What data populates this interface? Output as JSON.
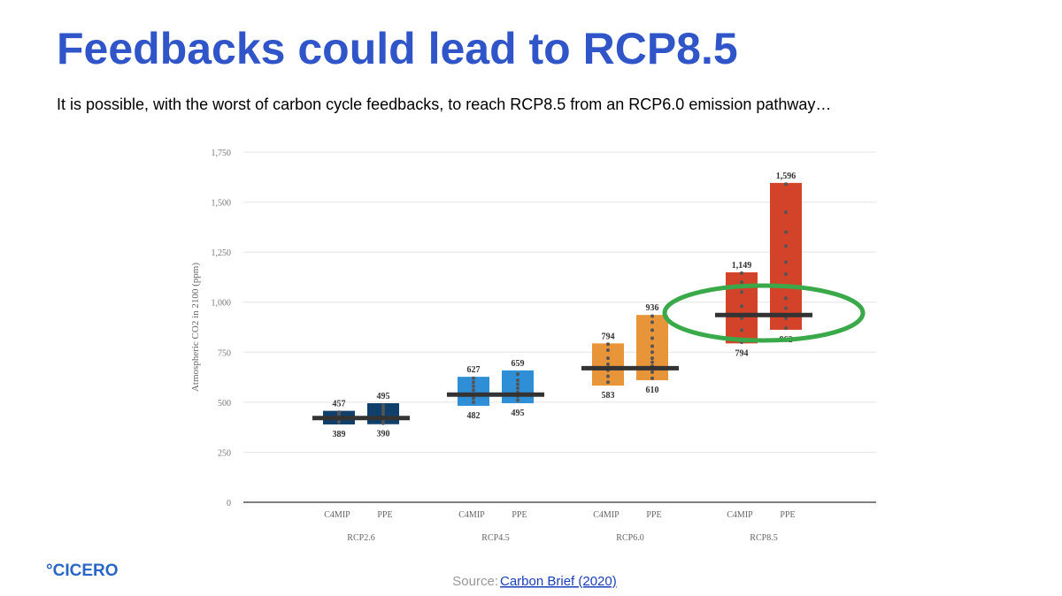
{
  "slide": {
    "title": "Feedbacks could lead to RCP8.5",
    "subtitle": "It is possible, with the worst of carbon cycle feedbacks, to reach RCP8.5 from an RCP6.0 emission pathway…",
    "logo": "°CICERO",
    "source_prefix": "Source:",
    "source_link": "Carbon Brief (2020)"
  },
  "chart_data": {
    "type": "range_bar",
    "ylabel": "Atmospheric CO2 in 2100 (ppm)",
    "ylim": [
      0,
      1750
    ],
    "yticks": [
      0,
      250,
      500,
      750,
      {
        "value": 1000,
        "label": "1,000"
      },
      {
        "value": 1250,
        "label": "1,250"
      },
      {
        "value": 1500,
        "label": "1,500"
      },
      {
        "value": 1750,
        "label": "1,750"
      }
    ],
    "grid": true,
    "groups": [
      {
        "name": "RCP2.6",
        "reference": 421,
        "bars": [
          {
            "name": "C4MIP",
            "color": "#0f3f6a",
            "values": [
              389,
              457
            ],
            "points": [
              400,
              415,
              425,
              440,
              450
            ]
          },
          {
            "name": "PPE",
            "color": "#0f3f6a",
            "values": [
              390,
              495
            ],
            "points": [
              395,
              410,
              425,
              440,
              455,
              470,
              485
            ]
          }
        ]
      },
      {
        "name": "RCP4.5",
        "reference": 538,
        "bars": [
          {
            "name": "C4MIP",
            "color": "#2f8fd6",
            "values": [
              482,
              627
            ],
            "points": [
              500,
              520,
              540,
              560,
              580,
              600,
              620
            ]
          },
          {
            "name": "PPE",
            "color": "#2f8fd6",
            "values": [
              495,
              659
            ],
            "points": [
              510,
              530,
              550,
              570,
              590,
              610,
              640
            ]
          }
        ]
      },
      {
        "name": "RCP6.0",
        "reference": 670,
        "bars": [
          {
            "name": "C4MIP",
            "color": "#e8953a",
            "values": [
              583,
              794
            ],
            "points": [
              600,
              630,
              660,
              690,
              720,
              760,
              790
            ]
          },
          {
            "name": "PPE",
            "color": "#e8953a",
            "values": [
              610,
              936
            ],
            "points": [
              620,
              650,
              680,
              700,
              720,
              750,
              780,
              820,
              860,
              900,
              930
            ]
          }
        ]
      },
      {
        "name": "RCP8.5",
        "reference": 936,
        "bars": [
          {
            "name": "C4MIP",
            "color": "#d2432a",
            "values": [
              794,
              1149
            ],
            "value_labels": [
              "794",
              "1,149"
            ],
            "points": [
              800,
              860,
              920,
              980,
              1050,
              1100,
              1145
            ]
          },
          {
            "name": "PPE",
            "color": "#d2432a",
            "values": [
              862,
              1596
            ],
            "value_labels": [
              "862",
              "1,596"
            ],
            "points": [
              870,
              920,
              970,
              1020,
              1080,
              1140,
              1200,
              1280,
              1350,
              1450,
              1590
            ]
          }
        ]
      }
    ]
  }
}
